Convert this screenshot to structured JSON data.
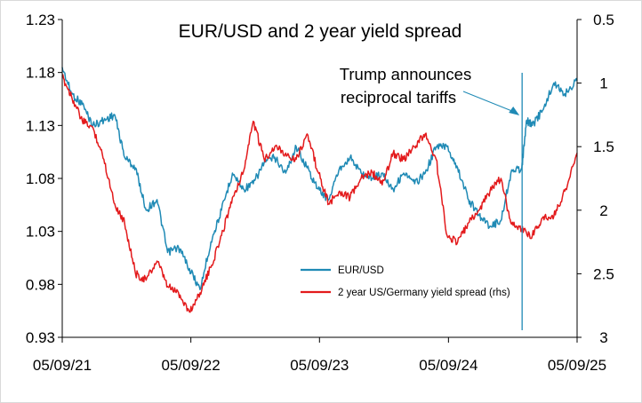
{
  "chart_data": {
    "type": "line",
    "title": "EUR/USD and 2 year yield spread",
    "xlabel": "",
    "ylabel": "",
    "x_ticks": [
      "05/09/21",
      "05/09/22",
      "05/09/23",
      "05/09/24",
      "05/09/25"
    ],
    "x_range": [
      "2021-09-05",
      "2025-09-05"
    ],
    "y_left": {
      "ticks": [
        "1.23",
        "1.18",
        "1.13",
        "1.08",
        "1.03",
        "0.98",
        "0.93"
      ],
      "range": [
        0.93,
        1.23
      ]
    },
    "y_right": {
      "ticks": [
        "0.5",
        "1",
        "1.5",
        "2",
        "2.5",
        "3"
      ],
      "range": [
        0.5,
        3
      ],
      "inverted": true
    },
    "annotation": {
      "lines": [
        "Trump announces",
        "reciprocal tariffs"
      ],
      "date": "2025-04-02"
    },
    "legend_position": "center-bottom",
    "series": [
      {
        "name": "EUR/USD",
        "axis": "left",
        "color": "#1f8ab5",
        "points": [
          [
            "2021-09-05",
            1.185
          ],
          [
            "2021-10-01",
            1.16
          ],
          [
            "2021-11-01",
            1.15
          ],
          [
            "2021-12-01",
            1.13
          ],
          [
            "2022-01-01",
            1.135
          ],
          [
            "2022-02-01",
            1.14
          ],
          [
            "2022-03-01",
            1.1
          ],
          [
            "2022-04-01",
            1.09
          ],
          [
            "2022-05-01",
            1.05
          ],
          [
            "2022-06-01",
            1.06
          ],
          [
            "2022-07-01",
            1.01
          ],
          [
            "2022-08-01",
            1.015
          ],
          [
            "2022-09-01",
            0.995
          ],
          [
            "2022-10-01",
            0.975
          ],
          [
            "2022-11-01",
            1.02
          ],
          [
            "2022-12-01",
            1.05
          ],
          [
            "2023-01-01",
            1.085
          ],
          [
            "2023-02-01",
            1.07
          ],
          [
            "2023-03-01",
            1.075
          ],
          [
            "2023-04-01",
            1.095
          ],
          [
            "2023-05-01",
            1.1
          ],
          [
            "2023-06-01",
            1.085
          ],
          [
            "2023-07-01",
            1.11
          ],
          [
            "2023-08-01",
            1.09
          ],
          [
            "2023-09-01",
            1.07
          ],
          [
            "2023-10-01",
            1.06
          ],
          [
            "2023-11-01",
            1.09
          ],
          [
            "2023-12-01",
            1.1
          ],
          [
            "2024-01-01",
            1.085
          ],
          [
            "2024-02-01",
            1.08
          ],
          [
            "2024-03-01",
            1.085
          ],
          [
            "2024-04-01",
            1.07
          ],
          [
            "2024-05-01",
            1.085
          ],
          [
            "2024-06-01",
            1.075
          ],
          [
            "2024-07-01",
            1.085
          ],
          [
            "2024-08-01",
            1.11
          ],
          [
            "2024-09-01",
            1.11
          ],
          [
            "2024-10-01",
            1.09
          ],
          [
            "2024-11-01",
            1.06
          ],
          [
            "2024-12-01",
            1.045
          ],
          [
            "2025-01-01",
            1.035
          ],
          [
            "2025-02-01",
            1.04
          ],
          [
            "2025-03-01",
            1.085
          ],
          [
            "2025-04-01",
            1.09
          ],
          [
            "2025-04-15",
            1.135
          ],
          [
            "2025-05-01",
            1.13
          ],
          [
            "2025-06-01",
            1.145
          ],
          [
            "2025-07-01",
            1.17
          ],
          [
            "2025-08-01",
            1.16
          ],
          [
            "2025-09-05",
            1.172
          ]
        ]
      },
      {
        "name": "2 year US/Germany yield spread (rhs)",
        "axis": "right",
        "color": "#e31a1c",
        "points": [
          [
            "2021-09-05",
            0.95
          ],
          [
            "2021-10-01",
            1.1
          ],
          [
            "2021-11-01",
            1.3
          ],
          [
            "2021-12-01",
            1.35
          ],
          [
            "2022-01-01",
            1.6
          ],
          [
            "2022-02-01",
            1.95
          ],
          [
            "2022-03-01",
            2.1
          ],
          [
            "2022-04-01",
            2.5
          ],
          [
            "2022-05-01",
            2.55
          ],
          [
            "2022-06-01",
            2.4
          ],
          [
            "2022-07-01",
            2.6
          ],
          [
            "2022-08-01",
            2.65
          ],
          [
            "2022-09-01",
            2.8
          ],
          [
            "2022-10-01",
            2.65
          ],
          [
            "2022-11-01",
            2.45
          ],
          [
            "2022-12-01",
            2.2
          ],
          [
            "2023-01-01",
            1.9
          ],
          [
            "2023-02-01",
            1.7
          ],
          [
            "2023-03-01",
            1.3
          ],
          [
            "2023-04-01",
            1.6
          ],
          [
            "2023-05-01",
            1.5
          ],
          [
            "2023-06-01",
            1.55
          ],
          [
            "2023-07-01",
            1.6
          ],
          [
            "2023-08-01",
            1.4
          ],
          [
            "2023-09-01",
            1.7
          ],
          [
            "2023-10-01",
            1.95
          ],
          [
            "2023-11-01",
            1.85
          ],
          [
            "2023-12-01",
            1.9
          ],
          [
            "2024-01-01",
            1.75
          ],
          [
            "2024-02-01",
            1.7
          ],
          [
            "2024-03-01",
            1.8
          ],
          [
            "2024-04-01",
            1.55
          ],
          [
            "2024-05-01",
            1.6
          ],
          [
            "2024-06-01",
            1.5
          ],
          [
            "2024-07-01",
            1.4
          ],
          [
            "2024-08-01",
            1.6
          ],
          [
            "2024-09-01",
            2.2
          ],
          [
            "2024-10-01",
            2.25
          ],
          [
            "2024-11-01",
            2.1
          ],
          [
            "2024-12-01",
            2.0
          ],
          [
            "2025-01-01",
            1.85
          ],
          [
            "2025-02-01",
            1.75
          ],
          [
            "2025-03-01",
            2.1
          ],
          [
            "2025-04-01",
            2.15
          ],
          [
            "2025-05-01",
            2.2
          ],
          [
            "2025-06-01",
            2.05
          ],
          [
            "2025-07-01",
            2.05
          ],
          [
            "2025-08-01",
            1.85
          ],
          [
            "2025-09-05",
            1.55
          ]
        ]
      }
    ]
  }
}
